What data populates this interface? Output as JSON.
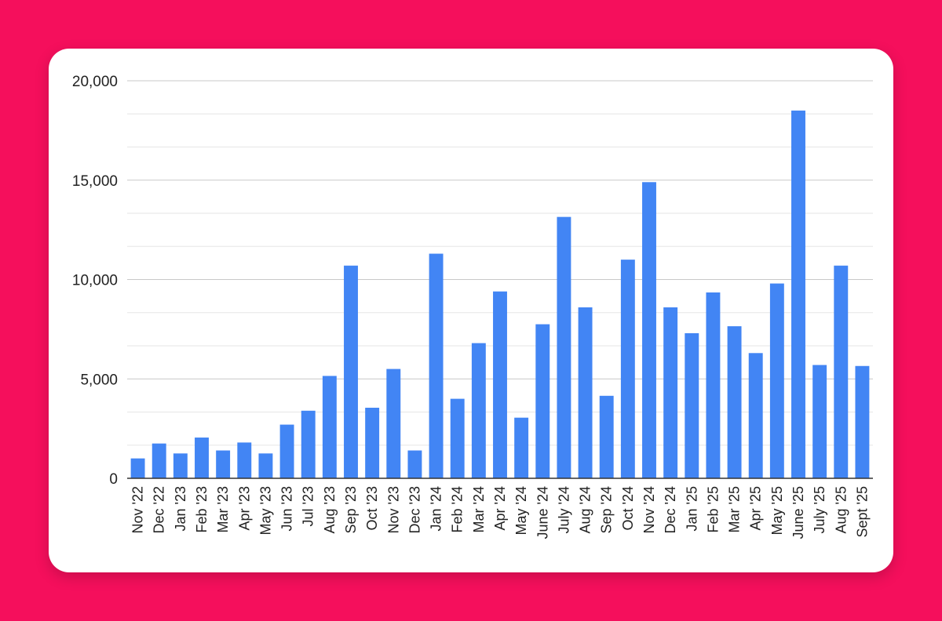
{
  "chart_data": {
    "type": "bar",
    "title": "",
    "xlabel": "",
    "ylabel": "",
    "ylim": [
      0,
      20000
    ],
    "yticks": [
      "0",
      "5,000",
      "10,000",
      "15,000",
      "20,000"
    ],
    "grid": true,
    "legend": "none",
    "bar_color": "#4285f4",
    "categories": [
      "Nov '22",
      "Dec '22",
      "Jan '23",
      "Feb '23",
      "Mar '23",
      "Apr '23",
      "May '23",
      "Jun '23",
      "Jul '23",
      "Aug '23",
      "Sep '23",
      "Oct '23",
      "Nov '23",
      "Dec '23",
      "Jan '24",
      "Feb '24",
      "Mar '24",
      "Apr '24",
      "May '24",
      "June '24",
      "July '24",
      "Aug '24",
      "Sep '24",
      "Oct '24",
      "Nov '24",
      "Dec '24",
      "Jan '25",
      "Feb '25",
      "Mar '25",
      "Apr '25",
      "May '25",
      "June '25",
      "July '25",
      "Aug '25",
      "Sept '25"
    ],
    "values": [
      1000,
      1750,
      1250,
      2050,
      1400,
      1800,
      1250,
      2700,
      3400,
      5150,
      10700,
      3550,
      5500,
      1400,
      11300,
      4000,
      6800,
      9400,
      3050,
      7750,
      13150,
      8600,
      4150,
      11000,
      14900,
      8600,
      7300,
      9350,
      7650,
      6300,
      9800,
      18500,
      5700,
      10700,
      5650
    ]
  },
  "colors": {
    "background": "#f50f5c",
    "card": "#ffffff",
    "bar": "#4285f4",
    "grid_major": "#c8c8c8",
    "grid_minor": "#e6e6e6",
    "axis": "#333333"
  }
}
